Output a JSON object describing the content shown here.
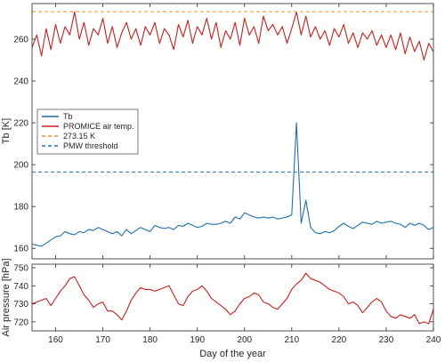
{
  "chart_data": [
    {
      "type": "line",
      "panel": "top",
      "ylabel": "Tb [K]",
      "xlabel": "",
      "xlim": [
        155,
        240
      ],
      "ylim": [
        155,
        277
      ],
      "yticks": [
        160,
        180,
        200,
        220,
        240,
        260
      ],
      "xticks": [
        160,
        170,
        180,
        190,
        200,
        210,
        220,
        230,
        240
      ],
      "show_x_tick_labels": false,
      "grid": false,
      "legend_position": "center-left",
      "series": [
        {
          "name": "Tb",
          "color": "#1f6fa8",
          "style": "solid",
          "x": [
            155,
            156,
            157,
            158,
            159,
            160,
            161,
            162,
            163,
            164,
            165,
            166,
            167,
            168,
            169,
            170,
            171,
            172,
            173,
            174,
            175,
            176,
            177,
            178,
            179,
            180,
            181,
            182,
            183,
            184,
            185,
            186,
            187,
            188,
            189,
            190,
            191,
            192,
            193,
            194,
            195,
            196,
            197,
            198,
            199,
            200,
            201,
            202,
            203,
            204,
            205,
            206,
            207,
            208,
            209,
            210,
            211,
            212,
            213,
            214,
            215,
            216,
            217,
            218,
            219,
            220,
            221,
            222,
            223,
            224,
            225,
            226,
            227,
            228,
            229,
            230,
            231,
            232,
            233,
            234,
            235,
            236,
            237,
            238,
            239,
            240
          ],
          "y": [
            162,
            161.5,
            161,
            162.5,
            164,
            165.5,
            166,
            168,
            167,
            166.5,
            168,
            167.5,
            169,
            168.5,
            170,
            169,
            168,
            167,
            168,
            166,
            169,
            167,
            168.5,
            170,
            169,
            168,
            171,
            170,
            169.5,
            170,
            169,
            171,
            170.5,
            172,
            171,
            170,
            170.5,
            172,
            171.5,
            171.5,
            172,
            173,
            172,
            175,
            174,
            177,
            176,
            175,
            174.5,
            175,
            174.5,
            175,
            174,
            174.5,
            175,
            176,
            220,
            172,
            183,
            170,
            167.5,
            167,
            168,
            167.5,
            168.5,
            170.5,
            172,
            170.5,
            169.5,
            171,
            172.5,
            172,
            171.5,
            173,
            172,
            172.5,
            173,
            172,
            171.5,
            170,
            172,
            171,
            172,
            171,
            169,
            170
          ]
        },
        {
          "name": "PROMICE air temp.",
          "color": "#c81e1e",
          "style": "solid",
          "x": [
            155,
            156,
            157,
            158,
            159,
            160,
            161,
            162,
            163,
            164,
            165,
            166,
            167,
            168,
            169,
            170,
            171,
            172,
            173,
            174,
            175,
            176,
            177,
            178,
            179,
            180,
            181,
            182,
            183,
            184,
            185,
            186,
            187,
            188,
            189,
            190,
            191,
            192,
            193,
            194,
            195,
            196,
            197,
            198,
            199,
            200,
            201,
            202,
            203,
            204,
            205,
            206,
            207,
            208,
            209,
            210,
            211,
            212,
            213,
            214,
            215,
            216,
            217,
            218,
            219,
            220,
            221,
            222,
            223,
            224,
            225,
            226,
            227,
            228,
            229,
            230,
            231,
            232,
            233,
            234,
            235,
            236,
            237,
            238,
            239,
            240
          ],
          "y": [
            256,
            262,
            252,
            265,
            255,
            267,
            258,
            266,
            262,
            273,
            260,
            268,
            257,
            265,
            262,
            270,
            258,
            266,
            256,
            263,
            268,
            260,
            265,
            257,
            266,
            262,
            268,
            258,
            265,
            262,
            255,
            267,
            261,
            269,
            258,
            266,
            262,
            270,
            260,
            268,
            256,
            264,
            260,
            268,
            257,
            270,
            262,
            266,
            258,
            271,
            264,
            267,
            262,
            266,
            258,
            265,
            273,
            262,
            271,
            261,
            266,
            260,
            264,
            257,
            265,
            261,
            267,
            258,
            263,
            256,
            263,
            260,
            264,
            257,
            262,
            256,
            262,
            255,
            263,
            253,
            261,
            254,
            259,
            250,
            258,
            254
          ]
        },
        {
          "name": "273.15 K",
          "color": "#f28e2b",
          "style": "dashed",
          "x": [
            155,
            240
          ],
          "y": [
            273.15,
            273.15
          ]
        },
        {
          "name": "PMW threshold",
          "color": "#1f77b4",
          "style": "dashed",
          "x": [
            155,
            240
          ],
          "y": [
            196.5,
            196.5
          ]
        }
      ]
    },
    {
      "type": "line",
      "panel": "bottom",
      "ylabel": "Air pressure [hPa]",
      "xlabel": "Day of the year",
      "xlim": [
        155,
        240
      ],
      "ylim": [
        715,
        752
      ],
      "yticks": [
        720,
        730,
        740,
        750
      ],
      "xticks": [
        160,
        170,
        180,
        190,
        200,
        210,
        220,
        230,
        240
      ],
      "grid": false,
      "series": [
        {
          "name": "",
          "color": "#c81e1e",
          "style": "solid",
          "x": [
            155,
            156,
            157,
            158,
            159,
            160,
            161,
            162,
            163,
            164,
            165,
            166,
            167,
            168,
            169,
            170,
            171,
            172,
            173,
            174,
            175,
            176,
            177,
            178,
            179,
            180,
            181,
            182,
            183,
            184,
            185,
            186,
            187,
            188,
            189,
            190,
            191,
            192,
            193,
            194,
            195,
            196,
            197,
            198,
            199,
            200,
            201,
            202,
            203,
            204,
            205,
            206,
            207,
            208,
            209,
            210,
            211,
            212,
            213,
            214,
            215,
            216,
            217,
            218,
            219,
            220,
            221,
            222,
            223,
            224,
            225,
            226,
            227,
            228,
            229,
            230,
            231,
            232,
            233,
            234,
            235,
            236,
            237,
            238,
            239,
            240
          ],
          "y": [
            730,
            731,
            732,
            733,
            729,
            733,
            737,
            740,
            744,
            745,
            740,
            735,
            732,
            728,
            730,
            731,
            726,
            726,
            724,
            721,
            726,
            732,
            736,
            739,
            738,
            738,
            737,
            738,
            739,
            740,
            735,
            730,
            729,
            734,
            737,
            738,
            740,
            737,
            733,
            731,
            729,
            727,
            724,
            726,
            730,
            733,
            734,
            736,
            735,
            731,
            730,
            728,
            727,
            730,
            733,
            738,
            741,
            743,
            747,
            744,
            743,
            742,
            740,
            738,
            737,
            736,
            734,
            730,
            731,
            729,
            725,
            728,
            731,
            733,
            731,
            726,
            723,
            722,
            724,
            723,
            722,
            724,
            719,
            720,
            719,
            727
          ]
        }
      ]
    }
  ]
}
